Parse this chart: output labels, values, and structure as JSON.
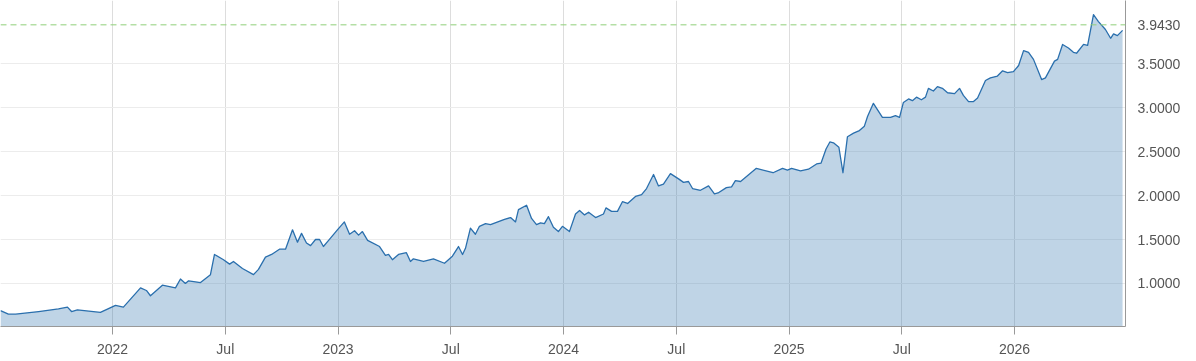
{
  "chart_data": {
    "type": "area",
    "x": [
      2021.503,
      2021.538,
      2021.57,
      2021.672,
      2021.76,
      2021.8,
      2021.818,
      2021.844,
      2021.946,
      2022.013,
      2022.048,
      2022.124,
      2022.15,
      2022.168,
      2022.221,
      2022.279,
      2022.301,
      2022.323,
      2022.337,
      2022.39,
      2022.434,
      2022.452,
      2022.492,
      2022.519,
      2022.536,
      2022.576,
      2022.625,
      2022.647,
      2022.678,
      2022.705,
      2022.74,
      2022.767,
      2022.798,
      2022.82,
      2022.838,
      2022.86,
      2022.878,
      2022.9,
      2022.918,
      2022.935,
      2022.958,
      2022.997,
      2023.028,
      2023.051,
      2023.073,
      2023.091,
      2023.108,
      2023.131,
      2023.184,
      2023.21,
      2023.224,
      2023.241,
      2023.268,
      2023.303,
      2023.321,
      2023.334,
      2023.379,
      2023.423,
      2023.472,
      2023.507,
      2023.534,
      2023.552,
      2023.565,
      2023.587,
      2023.609,
      2023.627,
      2023.654,
      2023.676,
      2023.738,
      2023.765,
      2023.787,
      2023.8,
      2023.836,
      2023.858,
      2023.88,
      2023.898,
      2023.915,
      2023.933,
      2023.955,
      2023.977,
      2023.995,
      2024.026,
      2024.053,
      2024.071,
      2024.093,
      2024.111,
      2024.142,
      2024.177,
      2024.188,
      2024.213,
      2024.239,
      2024.261,
      2024.284,
      2024.319,
      2024.346,
      2024.368,
      2024.399,
      2024.421,
      2024.443,
      2024.474,
      2024.51,
      2024.532,
      2024.554,
      2024.572,
      2024.607,
      2024.643,
      2024.669,
      2024.685,
      2024.722,
      2024.745,
      2024.762,
      2024.785,
      2024.855,
      2024.929,
      2024.971,
      2024.993,
      2025.011,
      2025.051,
      2025.086,
      2025.122,
      2025.142,
      2025.164,
      2025.181,
      2025.197,
      2025.221,
      2025.239,
      2025.259,
      2025.286,
      2025.312,
      2025.334,
      2025.348,
      2025.374,
      2025.414,
      2025.45,
      2025.472,
      2025.49,
      2025.507,
      2025.53,
      2025.547,
      2025.565,
      2025.587,
      2025.605,
      2025.618,
      2025.64,
      2025.658,
      2025.68,
      2025.703,
      2025.734,
      2025.756,
      2025.773,
      2025.796,
      2025.818,
      2025.836,
      2025.871,
      2025.893,
      2025.924,
      2025.947,
      2025.969,
      2025.995,
      2026.018,
      2026.04,
      2026.062,
      2026.084,
      2026.12,
      2026.137,
      2026.177,
      2026.191,
      2026.213,
      2026.239,
      2026.261,
      2026.275,
      2026.306,
      2026.324,
      2026.35,
      2026.372,
      2026.403,
      2026.426,
      2026.439,
      2026.456,
      2026.479
    ],
    "series": [
      {
        "color": "#2a6fad",
        "values": [
          0.69,
          0.65,
          0.65,
          0.68,
          0.71,
          0.73,
          0.68,
          0.7,
          0.67,
          0.75,
          0.73,
          0.95,
          0.92,
          0.86,
          0.98,
          0.95,
          1.05,
          1.0,
          1.03,
          1.01,
          1.1,
          1.33,
          1.27,
          1.22,
          1.25,
          1.17,
          1.1,
          1.16,
          1.3,
          1.33,
          1.39,
          1.39,
          1.61,
          1.47,
          1.57,
          1.46,
          1.43,
          1.5,
          1.5,
          1.42,
          1.49,
          1.61,
          1.7,
          1.56,
          1.6,
          1.55,
          1.59,
          1.49,
          1.42,
          1.32,
          1.33,
          1.27,
          1.33,
          1.35,
          1.25,
          1.28,
          1.25,
          1.28,
          1.23,
          1.31,
          1.42,
          1.33,
          1.4,
          1.63,
          1.56,
          1.65,
          1.68,
          1.67,
          1.73,
          1.75,
          1.7,
          1.84,
          1.89,
          1.74,
          1.67,
          1.69,
          1.68,
          1.76,
          1.64,
          1.59,
          1.65,
          1.59,
          1.79,
          1.83,
          1.78,
          1.81,
          1.75,
          1.79,
          1.86,
          1.82,
          1.82,
          1.93,
          1.91,
          1.99,
          2.01,
          2.08,
          2.24,
          2.11,
          2.13,
          2.25,
          2.19,
          2.15,
          2.16,
          2.08,
          2.06,
          2.11,
          2.02,
          2.03,
          2.09,
          2.1,
          2.17,
          2.16,
          2.31,
          2.26,
          2.31,
          2.29,
          2.31,
          2.28,
          2.3,
          2.36,
          2.37,
          2.53,
          2.61,
          2.6,
          2.55,
          2.26,
          2.67,
          2.71,
          2.74,
          2.79,
          2.9,
          3.05,
          2.89,
          2.89,
          2.91,
          2.89,
          3.06,
          3.1,
          3.08,
          3.12,
          3.09,
          3.12,
          3.22,
          3.19,
          3.24,
          3.22,
          3.17,
          3.16,
          3.22,
          3.14,
          3.07,
          3.07,
          3.11,
          3.31,
          3.34,
          3.36,
          3.42,
          3.4,
          3.41,
          3.48,
          3.65,
          3.63,
          3.55,
          3.32,
          3.34,
          3.53,
          3.55,
          3.72,
          3.68,
          3.63,
          3.62,
          3.72,
          3.71,
          4.06,
          3.98,
          3.89,
          3.79,
          3.84,
          3.82,
          3.88
        ]
      }
    ],
    "xlim": [
      2021.503,
      2026.492
    ],
    "xticks": [
      {
        "value": 2022,
        "label": "2022"
      },
      {
        "value": 2022.5,
        "label": "Jul"
      },
      {
        "value": 2023,
        "label": "2023"
      },
      {
        "value": 2023.5,
        "label": "Jul"
      },
      {
        "value": 2024,
        "label": "2024"
      },
      {
        "value": 2024.5,
        "label": "Jul"
      },
      {
        "value": 2025,
        "label": "2025"
      },
      {
        "value": 2025.5,
        "label": "Jul"
      },
      {
        "value": 2026,
        "label": "2026"
      }
    ],
    "ylim": [
      0.51,
      4.22
    ],
    "yticks": [
      {
        "value": 1,
        "label": "1.0000"
      },
      {
        "value": 1.5,
        "label": "1.5000"
      },
      {
        "value": 2,
        "label": "2.0000"
      },
      {
        "value": 2.5,
        "label": "2.5000"
      },
      {
        "value": 3,
        "label": "3.0000"
      },
      {
        "value": 3.5,
        "label": "3.5000"
      }
    ],
    "ref_lines": [
      {
        "axis": "y",
        "value": 3.943,
        "label": "3.9430",
        "color": "#8fcf7a",
        "line_style": "dashed"
      }
    ],
    "grid": true
  }
}
